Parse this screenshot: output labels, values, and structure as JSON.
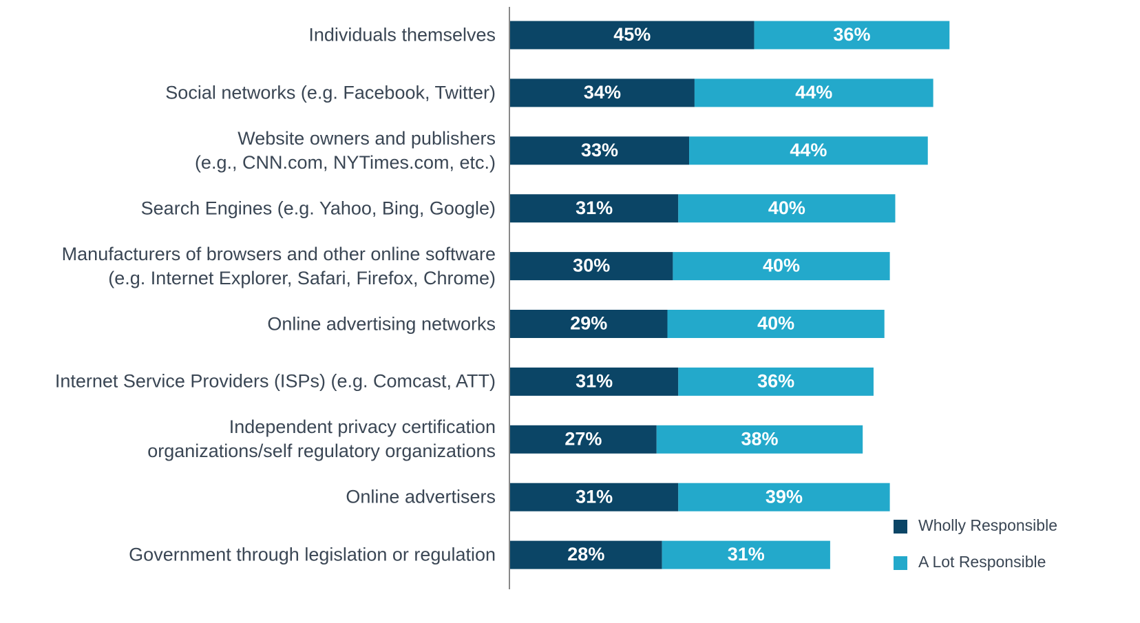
{
  "chart_data": {
    "type": "stacked-bar-horizontal",
    "categories": [
      "Individuals themselves",
      "Social networks (e.g. Facebook, Twitter)",
      "Website owners and publishers\n(e.g., CNN.com, NYTimes.com, etc.)",
      "Search Engines (e.g. Yahoo, Bing, Google)",
      "Manufacturers of browsers and other online software\n(e.g. Internet Explorer, Safari, Firefox, Chrome)",
      "Online advertising networks",
      "Internet Service Providers (ISPs) (e.g. Comcast, ATT)",
      "Independent privacy certification\norganizations/self regulatory organizations",
      "Online advertisers",
      "Government through legislation or regulation"
    ],
    "series": [
      {
        "name": "Wholly Responsible",
        "color": "#0b4566",
        "values": [
          45,
          34,
          33,
          31,
          30,
          29,
          31,
          27,
          31,
          28
        ],
        "value_labels": [
          "45%",
          "34%",
          "33%",
          "31%",
          "30%",
          "29%",
          "31%",
          "27%",
          "31%",
          "28%"
        ]
      },
      {
        "name": "A Lot Responsible",
        "color": "#23a9cb",
        "values": [
          36,
          44,
          44,
          40,
          40,
          40,
          36,
          38,
          39,
          31
        ],
        "value_labels": [
          "36%",
          "44%",
          "44%",
          "40%",
          "40%",
          "40%",
          "36%",
          "38%",
          "39%",
          "31%"
        ]
      }
    ],
    "legend": "lower right"
  }
}
